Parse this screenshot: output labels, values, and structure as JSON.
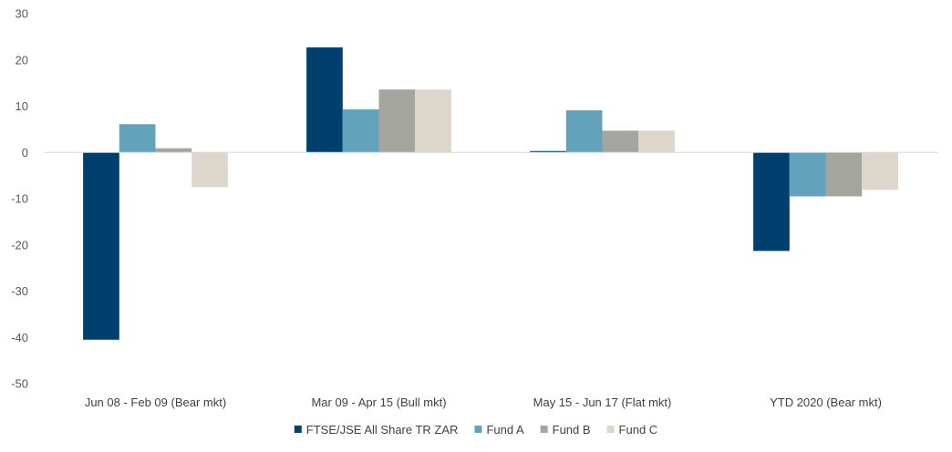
{
  "chart_data": {
    "type": "bar",
    "title": "",
    "xlabel": "",
    "ylabel": "",
    "ylim": [
      -50,
      30
    ],
    "yticks": [
      30,
      20,
      10,
      0,
      -10,
      -20,
      -30,
      -40,
      -50
    ],
    "grid": false,
    "legend_position": "bottom",
    "categories": [
      "Jun 08 - Feb 09 (Bear mkt)",
      "Mar 09 - Apr 15 (Bull mkt)",
      "May 15 - Jun 17 (Flat mkt)",
      "YTD 2020 (Bear mkt)"
    ],
    "series": [
      {
        "name": "FTSE/JSE All Share TR ZAR",
        "color": "#003f6e",
        "values": [
          -40.5,
          22.7,
          0.3,
          -21.3
        ]
      },
      {
        "name": "Fund A",
        "color": "#62a3bb",
        "values": [
          6.1,
          9.3,
          9.1,
          -9.5
        ]
      },
      {
        "name": "Fund B",
        "color": "#a5a59f",
        "values": [
          0.9,
          13.6,
          4.7,
          -9.5
        ]
      },
      {
        "name": "Fund C",
        "color": "#ddd6ca",
        "values": [
          -7.5,
          13.6,
          4.7,
          -8.1
        ]
      }
    ]
  }
}
